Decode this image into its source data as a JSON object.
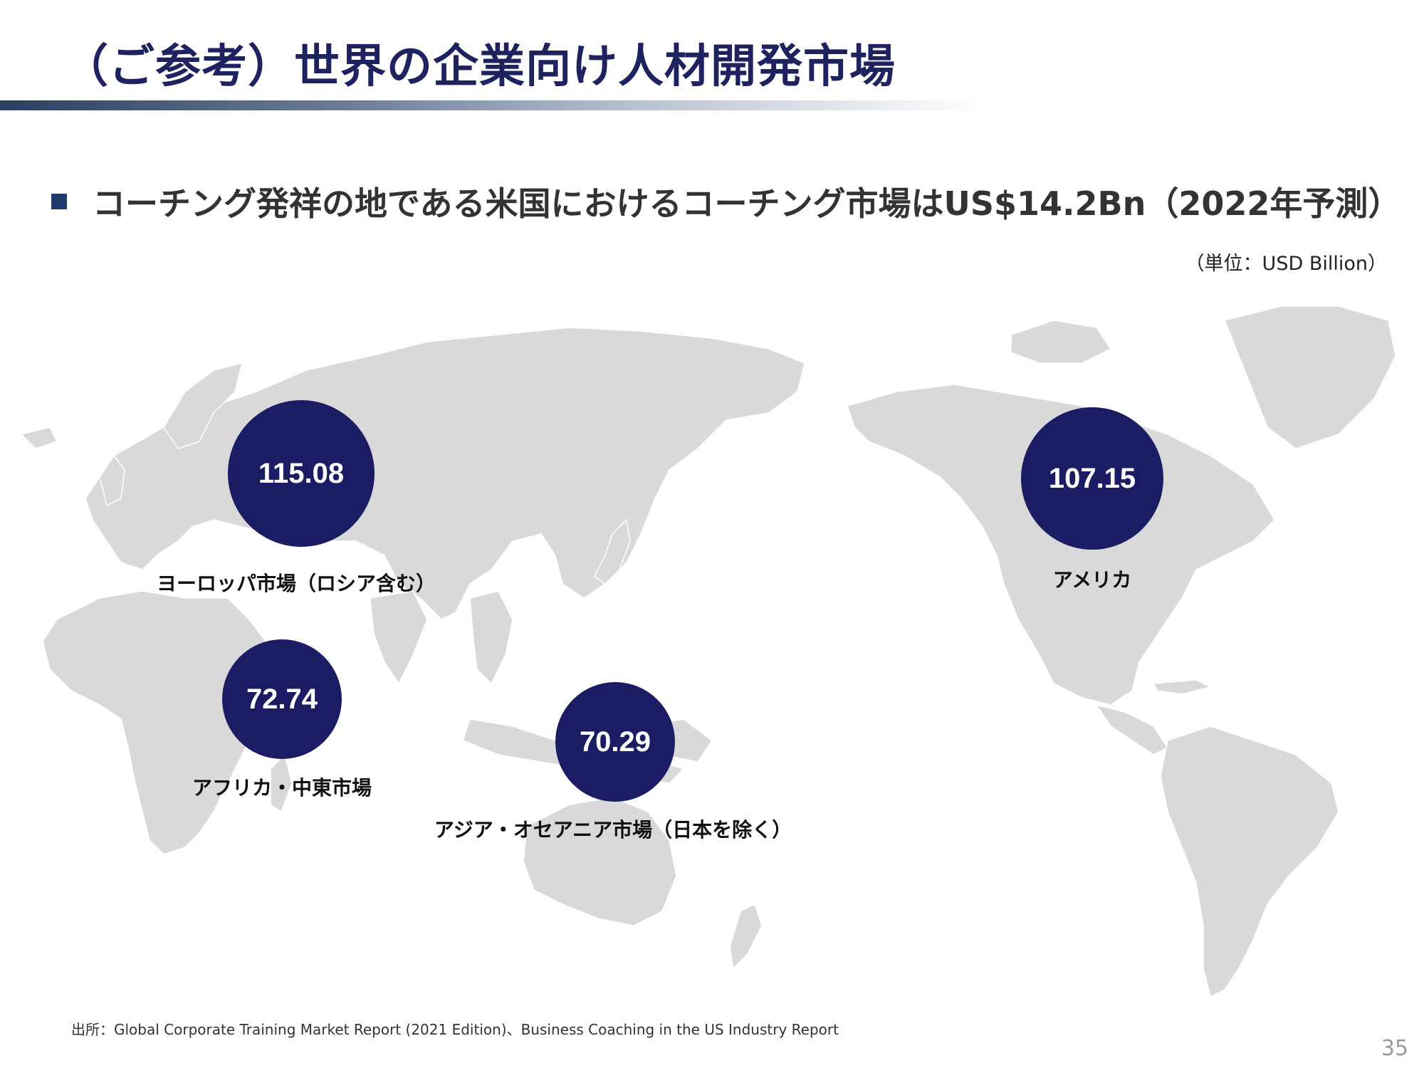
{
  "slide": {
    "title": "（ご参考）世界の企業向け人材開発市場",
    "bullet": "コーチング発祥の地である米国におけるコーチング市場はUS$14.2Bn（2022年予測）",
    "unit": "（単位：USD Billion）",
    "source": "出所：Global Corporate Training Market Report (2021 Edition)、Business Coaching in the US Industry Report",
    "page_number": "35"
  },
  "colors": {
    "title": "#1e2360",
    "bubble": "#1b1c64",
    "land": "#d9d9d9",
    "bullet": "#1f3a6b"
  },
  "markets": [
    {
      "region": "ヨーロッパ市場（ロシア含む）",
      "value": "115.08"
    },
    {
      "region": "アフリカ・中東市場",
      "value": "72.74"
    },
    {
      "region": "アジア・オセアニア市場（日本を除く）",
      "value": "70.29"
    },
    {
      "region": "アメリカ",
      "value": "107.15"
    }
  ]
}
